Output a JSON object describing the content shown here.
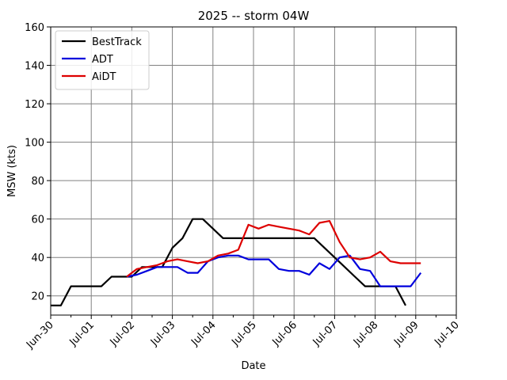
{
  "chart_data": {
    "type": "line",
    "title": "2025 -- storm 04W",
    "xlabel": "Date",
    "ylabel": "MSW (kts)",
    "x_ticks": [
      "Jun-30",
      "Jul-01",
      "Jul-02",
      "Jul-03",
      "Jul-04",
      "Jul-05",
      "Jul-06",
      "Jul-07",
      "Jul-08",
      "Jul-09",
      "Jul-10"
    ],
    "xlim": [
      "2025-06-30",
      "2025-07-10"
    ],
    "ylim": [
      10,
      160
    ],
    "y_ticks": [
      20,
      40,
      60,
      80,
      100,
      120,
      140,
      160
    ],
    "grid": true,
    "legend_position": "top-left",
    "series": [
      {
        "name": "BestTrack",
        "color": "#000000",
        "x": [
          "2025-06-30 00:00",
          "2025-06-30 06:00",
          "2025-06-30 12:00",
          "2025-06-30 18:00",
          "2025-07-01 00:00",
          "2025-07-01 06:00",
          "2025-07-01 12:00",
          "2025-07-01 18:00",
          "2025-07-02 00:00",
          "2025-07-02 06:00",
          "2025-07-02 12:00",
          "2025-07-02 18:00",
          "2025-07-03 00:00",
          "2025-07-03 06:00",
          "2025-07-03 12:00",
          "2025-07-03 18:00",
          "2025-07-04 00:00",
          "2025-07-04 06:00",
          "2025-07-04 12:00",
          "2025-07-04 18:00",
          "2025-07-05 00:00",
          "2025-07-05 12:00",
          "2025-07-06 00:00",
          "2025-07-06 12:00",
          "2025-07-07 00:00",
          "2025-07-07 06:00",
          "2025-07-07 12:00",
          "2025-07-07 18:00",
          "2025-07-08 00:00",
          "2025-07-08 12:00",
          "2025-07-08 18:00"
        ],
        "values": [
          15,
          15,
          25,
          25,
          25,
          25,
          30,
          30,
          30,
          35,
          35,
          35,
          45,
          50,
          60,
          60,
          55,
          50,
          50,
          50,
          50,
          50,
          50,
          50,
          40,
          35,
          30,
          25,
          25,
          25,
          15
        ]
      },
      {
        "name": "ADT",
        "color": "#0000dd",
        "x": [
          "2025-07-01 21:00",
          "2025-07-02 03:00",
          "2025-07-02 09:00",
          "2025-07-02 15:00",
          "2025-07-02 21:00",
          "2025-07-03 03:00",
          "2025-07-03 09:00",
          "2025-07-03 15:00",
          "2025-07-03 21:00",
          "2025-07-04 03:00",
          "2025-07-04 09:00",
          "2025-07-04 15:00",
          "2025-07-04 21:00",
          "2025-07-05 03:00",
          "2025-07-05 09:00",
          "2025-07-05 15:00",
          "2025-07-05 21:00",
          "2025-07-06 03:00",
          "2025-07-06 09:00",
          "2025-07-06 15:00",
          "2025-07-06 21:00",
          "2025-07-07 03:00",
          "2025-07-07 09:00",
          "2025-07-07 15:00",
          "2025-07-07 21:00",
          "2025-07-08 03:00",
          "2025-07-08 09:00",
          "2025-07-08 15:00",
          "2025-07-08 21:00",
          "2025-07-09 03:00"
        ],
        "values": [
          30,
          31,
          33,
          35,
          35,
          35,
          32,
          32,
          38,
          40,
          41,
          41,
          39,
          39,
          39,
          34,
          33,
          33,
          31,
          37,
          34,
          40,
          41,
          34,
          33,
          25,
          25,
          25,
          25,
          32
        ]
      },
      {
        "name": "AiDT",
        "color": "#dd0000",
        "x": [
          "2025-07-01 21:00",
          "2025-07-02 03:00",
          "2025-07-02 09:00",
          "2025-07-02 15:00",
          "2025-07-02 21:00",
          "2025-07-03 03:00",
          "2025-07-03 09:00",
          "2025-07-03 15:00",
          "2025-07-03 21:00",
          "2025-07-04 03:00",
          "2025-07-04 09:00",
          "2025-07-04 15:00",
          "2025-07-04 21:00",
          "2025-07-05 03:00",
          "2025-07-05 09:00",
          "2025-07-05 15:00",
          "2025-07-05 21:00",
          "2025-07-06 03:00",
          "2025-07-06 09:00",
          "2025-07-06 15:00",
          "2025-07-06 21:00",
          "2025-07-07 03:00",
          "2025-07-07 09:00",
          "2025-07-07 15:00",
          "2025-07-07 21:00",
          "2025-07-08 03:00",
          "2025-07-08 09:00",
          "2025-07-08 15:00",
          "2025-07-08 21:00",
          "2025-07-09 03:00"
        ],
        "values": [
          30,
          34,
          35,
          36,
          38,
          39,
          38,
          37,
          38,
          41,
          42,
          44,
          57,
          55,
          57,
          56,
          55,
          54,
          52,
          58,
          59,
          48,
          40,
          39,
          40,
          43,
          38,
          37,
          37,
          37
        ]
      }
    ]
  }
}
